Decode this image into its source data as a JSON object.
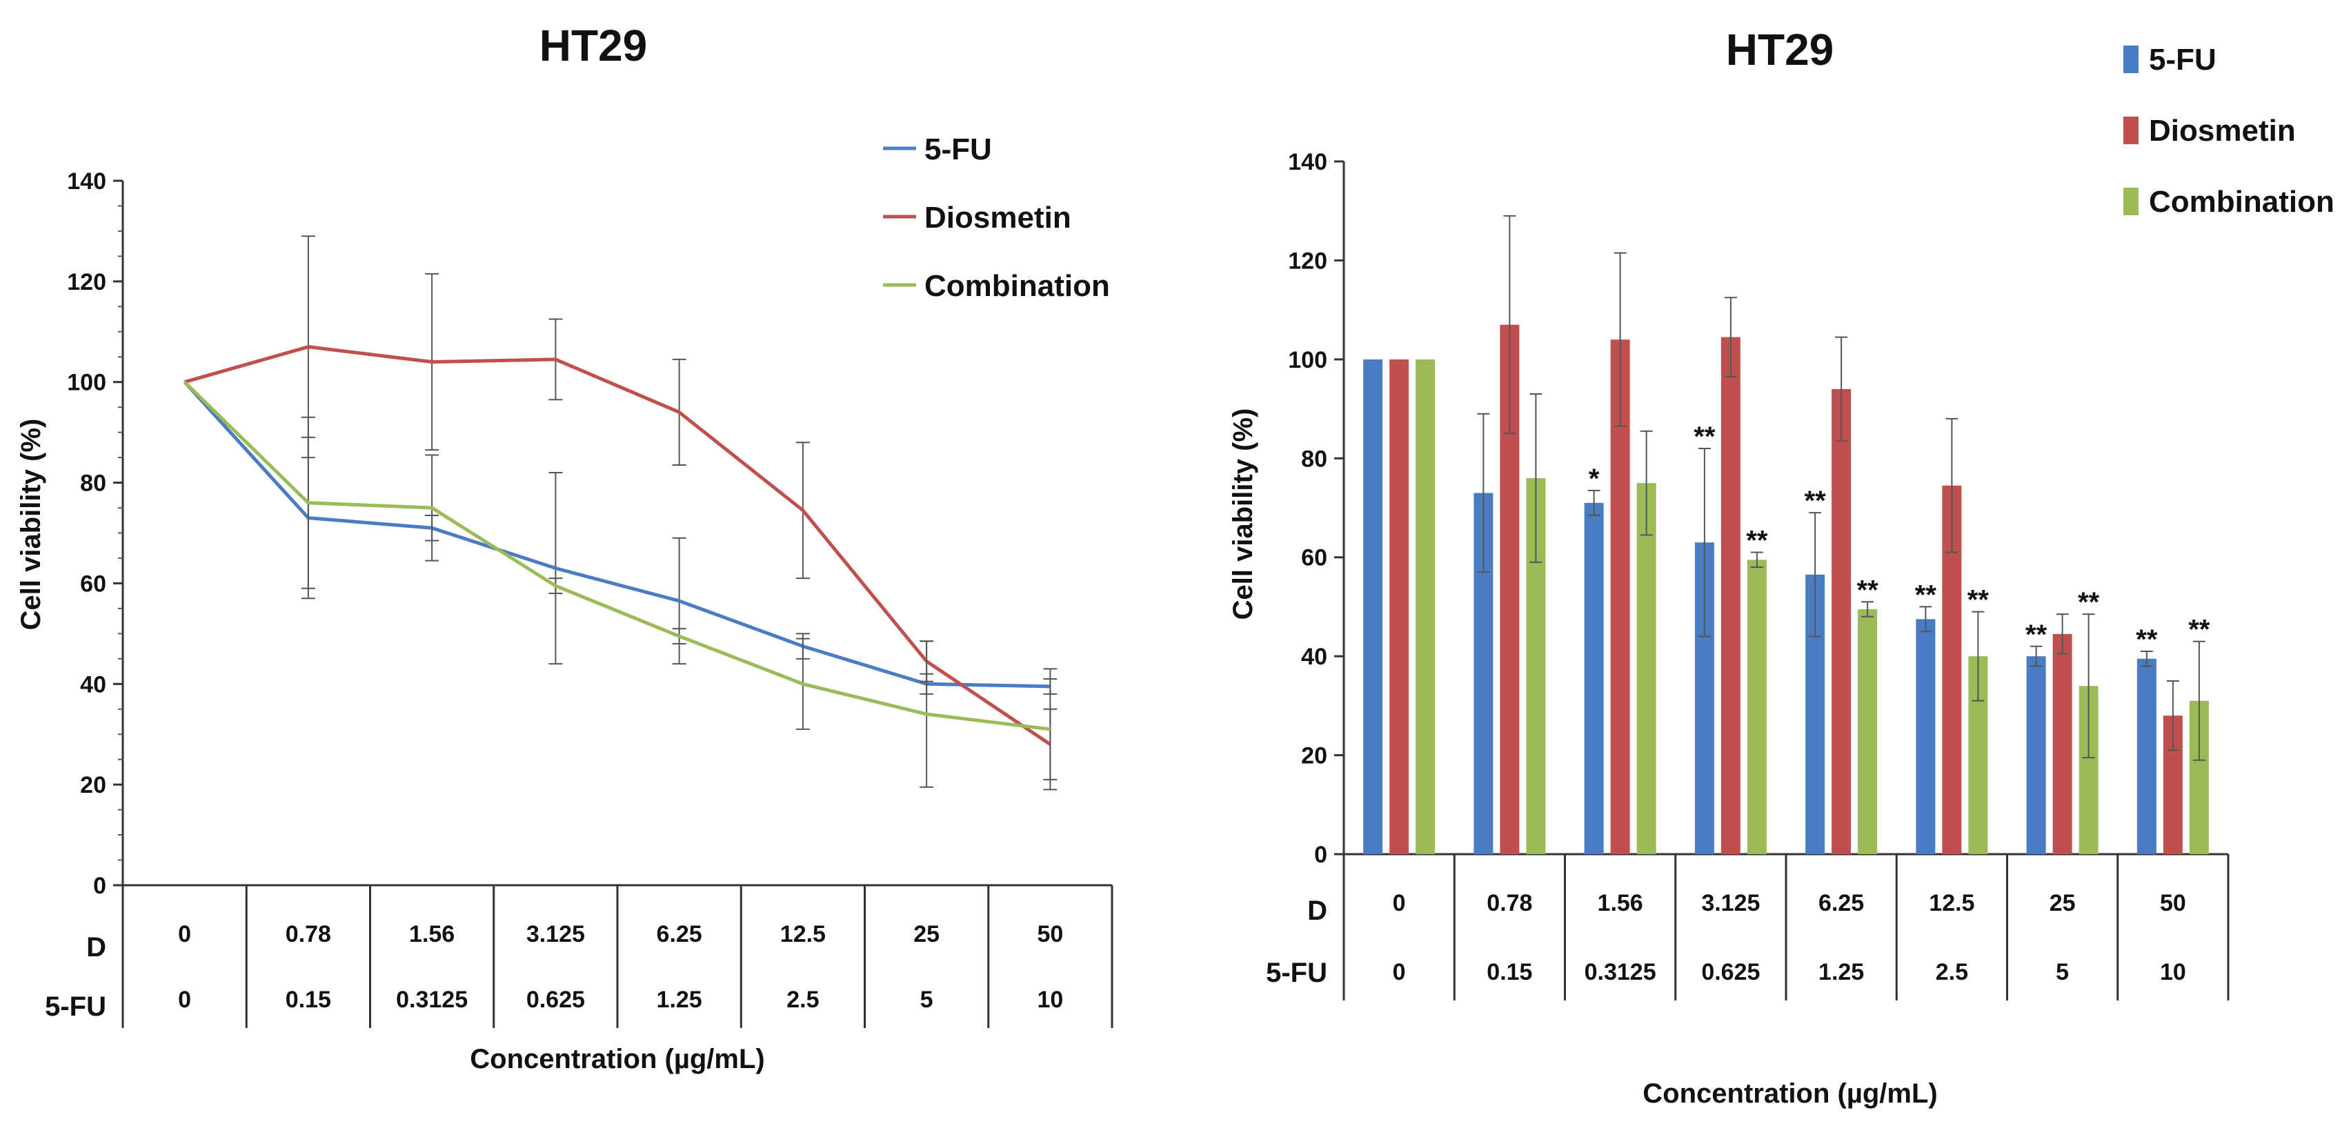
{
  "chart_data": [
    {
      "type": "line",
      "title": "HT29",
      "xlabel": "Concentration (µg/mL)",
      "ylabel": "Cell viability (%)",
      "ylim": [
        0,
        140
      ],
      "yticks": [
        "0",
        "20",
        "40",
        "60",
        "80",
        "100",
        "120",
        "140"
      ],
      "row_labels": [
        "D",
        "5-FU"
      ],
      "categories_d": [
        "0",
        "0.78",
        "1.56",
        "3.125",
        "6.25",
        "12.5",
        "25",
        "50"
      ],
      "categories_5fu": [
        "0",
        "0.15",
        "0.3125",
        "0.625",
        "1.25",
        "2.5",
        "5",
        "10"
      ],
      "legend_position": "top-right",
      "series": [
        {
          "name": "5-FU",
          "color": "#4a7cc4",
          "values": [
            100,
            73,
            71,
            63,
            56.5,
            47.5,
            40,
            39.5
          ],
          "errors": [
            0,
            16,
            2.5,
            19,
            12.5,
            2.5,
            2,
            1.5
          ]
        },
        {
          "name": "Diosmetin",
          "color": "#c0504d",
          "values": [
            100,
            107,
            104,
            104.5,
            94,
            74.5,
            44.5,
            28
          ],
          "errors": [
            0,
            22,
            17.5,
            8,
            10.5,
            13.5,
            4,
            7
          ]
        },
        {
          "name": "Combination",
          "color": "#9bbb59",
          "values": [
            100,
            76,
            75,
            59.5,
            49.5,
            40,
            34,
            31
          ],
          "errors": [
            0,
            17,
            10.5,
            1.5,
            1.5,
            9,
            14.5,
            12
          ]
        }
      ]
    },
    {
      "type": "bar",
      "title": "HT29",
      "xlabel": "Concentration (µg/mL)",
      "ylabel": "Cell viability (%)",
      "ylim": [
        0,
        140
      ],
      "yticks": [
        "0",
        "20",
        "40",
        "60",
        "80",
        "100",
        "120",
        "140"
      ],
      "row_labels": [
        "D",
        "5-FU"
      ],
      "categories_d": [
        "0",
        "0.78",
        "1.56",
        "3.125",
        "6.25",
        "12.5",
        "25",
        "50"
      ],
      "categories_5fu": [
        "0",
        "0.15",
        "0.3125",
        "0.625",
        "1.25",
        "2.5",
        "5",
        "10"
      ],
      "legend_position": "top-right",
      "series": [
        {
          "name": "5-FU",
          "color": "#4a7cc4",
          "values": [
            100,
            73,
            71,
            63,
            56.5,
            47.5,
            40,
            39.5
          ],
          "errors": [
            0,
            16,
            2.5,
            19,
            12.5,
            2.5,
            2,
            1.5
          ],
          "significance": [
            "",
            "",
            "*",
            "**",
            "**",
            "**",
            "**",
            "**"
          ]
        },
        {
          "name": "Diosmetin",
          "color": "#c0504d",
          "values": [
            100,
            107,
            104,
            104.5,
            94,
            74.5,
            44.5,
            28
          ],
          "errors": [
            0,
            22,
            17.5,
            8,
            10.5,
            13.5,
            4,
            7
          ],
          "significance": [
            "",
            "",
            "",
            "",
            "",
            "",
            "",
            ""
          ]
        },
        {
          "name": "Combination",
          "color": "#9bbb59",
          "values": [
            100,
            76,
            75,
            59.5,
            49.5,
            40,
            34,
            31
          ],
          "errors": [
            0,
            17,
            10.5,
            1.5,
            1.5,
            9,
            14.5,
            12
          ],
          "significance": [
            "",
            "",
            "",
            "**",
            "**",
            "**",
            "**",
            "**"
          ]
        }
      ]
    }
  ]
}
